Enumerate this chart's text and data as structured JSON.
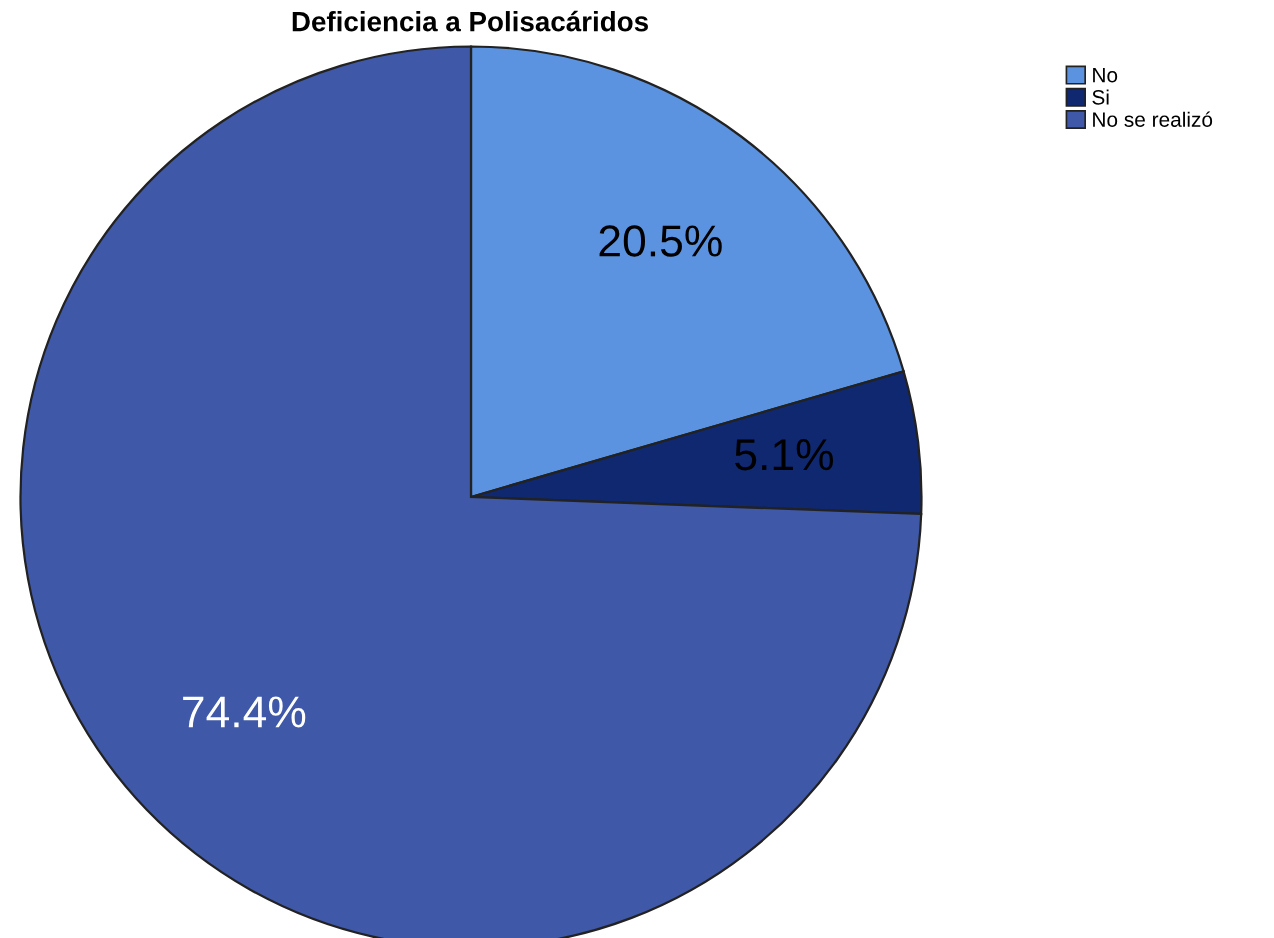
{
  "chart_data": {
    "type": "pie",
    "title": "Deficiencia a Polisacáridos",
    "categories": [
      "No",
      "Si",
      "No se realizó"
    ],
    "values": [
      20.5,
      5.1,
      74.4
    ],
    "colors": [
      "#5b93e0",
      "#0f2870",
      "#3f58a8"
    ],
    "value_labels": [
      "20.5%",
      "5.1%",
      "74.4%"
    ],
    "legend": "top right"
  }
}
